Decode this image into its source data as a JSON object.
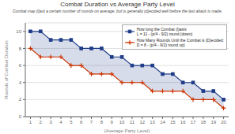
{
  "chart_data": {
    "type": "line",
    "title": "Combat Duration vs Average Party Level",
    "subtitle": "Combat may (l)ast a certain number of rounds on average, but is generally (d)ecided well before the last attack is made.",
    "xlabel": "(Average Party Level)",
    "ylabel": "Rounds of Combat Duration",
    "x": [
      1,
      2,
      3,
      4,
      5,
      6,
      7,
      8,
      9,
      10,
      11,
      12,
      13,
      14,
      15,
      16,
      17,
      18,
      19,
      20
    ],
    "series": [
      {
        "name": "How long the Combat (l)asts\nL = 11 - (p/4 - 9/2) round (down)",
        "color": "#1f3c88",
        "marker": "square",
        "values": [
          10,
          10,
          9,
          9,
          9,
          8,
          8,
          8,
          7,
          7,
          6,
          6,
          6,
          5,
          5,
          4,
          4,
          3,
          3,
          2
        ]
      },
      {
        "name": "How Many Rounds Until the Combat is (D)ecided:\nD = 8 - (p/4 - 9/2) round up)",
        "color": "#cc3300",
        "marker": "plus",
        "values": [
          8,
          7,
          7,
          7,
          6,
          6,
          5,
          5,
          5,
          4,
          4,
          4,
          3,
          3,
          3,
          3,
          2,
          2,
          2,
          1
        ]
      }
    ],
    "xlim": [
      0.5,
      20.5
    ],
    "ylim": [
      0,
      11
    ],
    "xticks": [
      1,
      2,
      3,
      4,
      5,
      6,
      7,
      8,
      9,
      10,
      11,
      12,
      13,
      14,
      15,
      16,
      17,
      18,
      19,
      20
    ],
    "yticks": [
      0,
      2,
      4,
      6,
      8,
      10
    ],
    "grid": "y",
    "legend": "upper right"
  }
}
